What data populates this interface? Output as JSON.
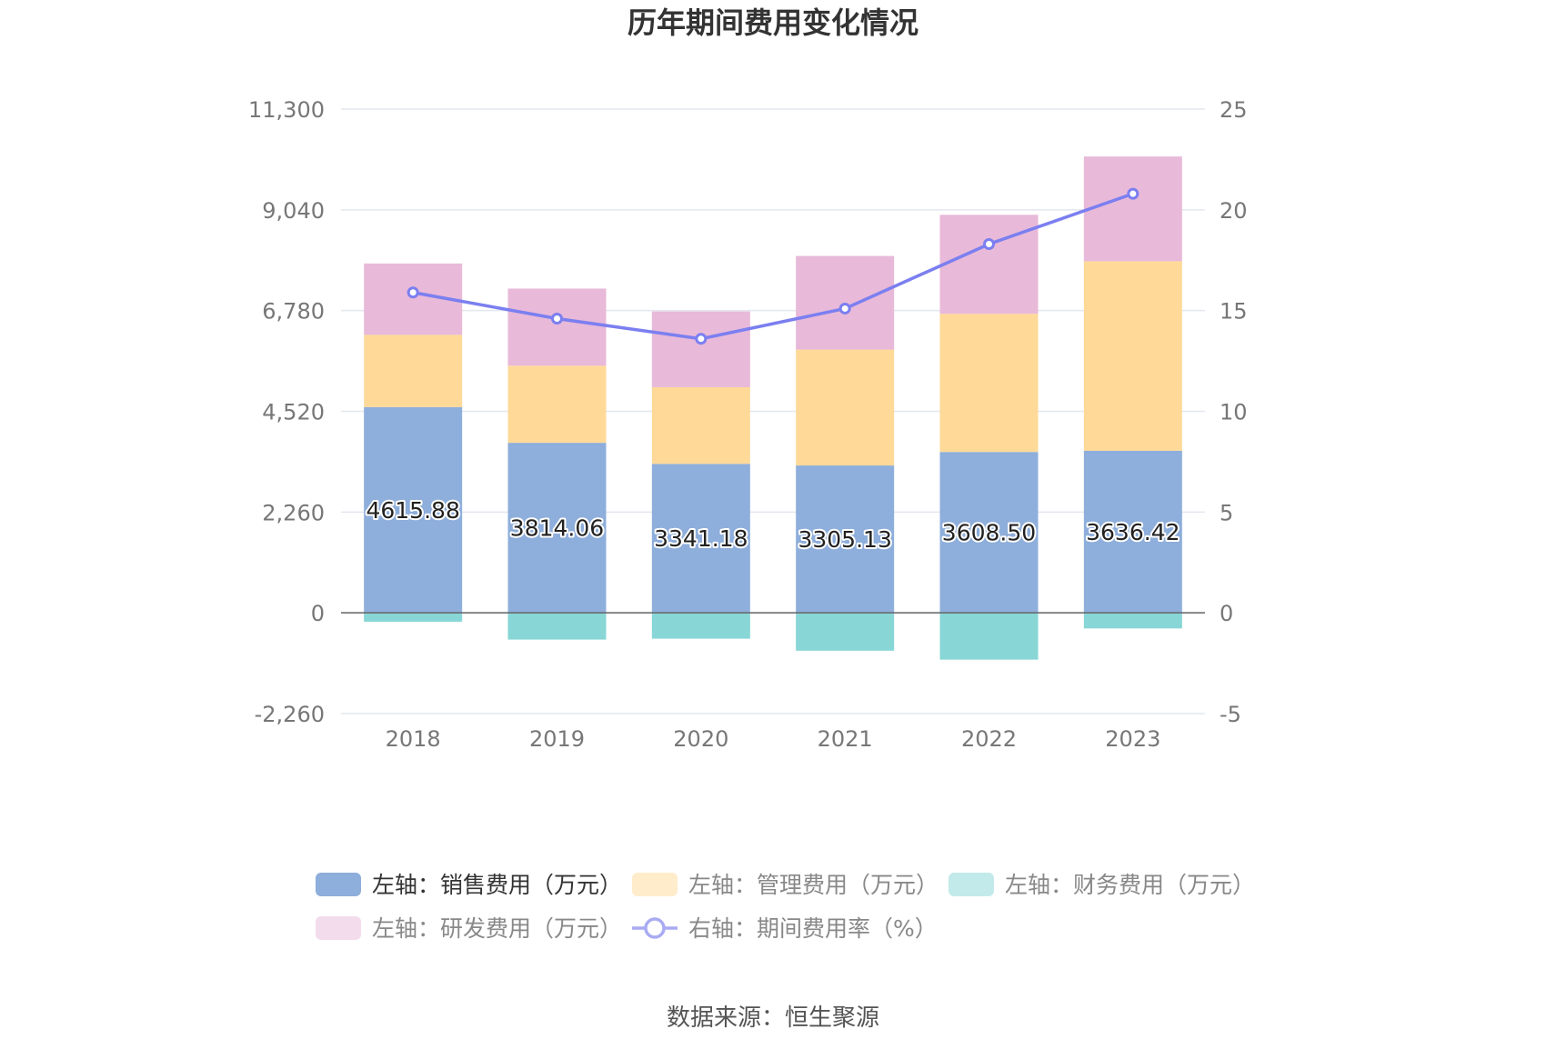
{
  "chart_data": {
    "type": "bar",
    "title": "历年期间费用变化情况",
    "source": "数据来源：恒生聚源",
    "categories": [
      "2018",
      "2019",
      "2020",
      "2021",
      "2022",
      "2023"
    ],
    "left_axis": {
      "ticks": [
        "11,300",
        "9,040",
        "6,780",
        "4,520",
        "2,260",
        "0",
        "-2,260"
      ],
      "ylim": [
        -2260,
        11300
      ]
    },
    "right_axis": {
      "ticks": [
        "25",
        "20",
        "15",
        "10",
        "5",
        "0",
        "-5"
      ],
      "ylim": [
        -5,
        25
      ]
    },
    "series": [
      {
        "name": "左轴：销售费用（万元）",
        "axis": "left",
        "stack": "cost",
        "color": "#8eaedb",
        "values": [
          4615.88,
          3814.06,
          3341.18,
          3305.13,
          3608.5,
          3636.42
        ],
        "labels": [
          "4615.88",
          "3814.06",
          "3341.18",
          "3305.13",
          "3608.50",
          "3636.42"
        ]
      },
      {
        "name": "左轴：管理费用（万元）",
        "axis": "left",
        "stack": "cost",
        "color": "#fed998",
        "values": [
          1620,
          1730,
          1720,
          2600,
          3100,
          4250
        ]
      },
      {
        "name": "左轴：财务费用（万元）",
        "axis": "left",
        "stack": "cost",
        "color": "#88d6d6",
        "values": [
          -200,
          -600,
          -580,
          -850,
          -1050,
          -350
        ]
      },
      {
        "name": "左轴：研发费用（万元）",
        "axis": "left",
        "stack": "cost",
        "color": "#e8b9d9",
        "values": [
          1600,
          1730,
          1700,
          2100,
          2220,
          2350
        ]
      },
      {
        "name": "右轴：期间费用率（%）",
        "axis": "right",
        "type": "line",
        "color": "#7b7ff0",
        "values": [
          15.9,
          14.6,
          13.6,
          15.1,
          18.3,
          20.8
        ]
      }
    ],
    "legend_position": "bottom",
    "grid": true
  }
}
